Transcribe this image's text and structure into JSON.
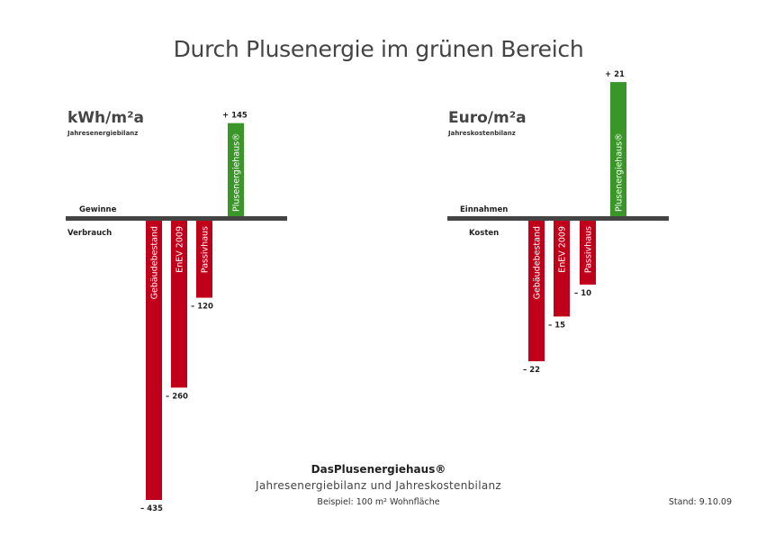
{
  "title": "Durch Plusenergie im grünen Bereich",
  "footer": {
    "title": "DasPlusenergiehaus®",
    "subtitle": "Jahresenergiebilanz und Jahreskostenbilanz",
    "example": "Beispiel:   100 m² Wohnfläche",
    "date": "Stand: 9.10.09"
  },
  "colors": {
    "negative": "#c0001b",
    "positive": "#3a9628",
    "axis": "#444444"
  },
  "chart_data": [
    {
      "type": "bar",
      "unit_label": "kWh/m²a",
      "subtitle": "Jahresenergiebilanz",
      "positive_label": "Gewinne",
      "negative_label": "Verbrauch",
      "categories": [
        "Gebäudebestand",
        "EnEV 2009",
        "Passivhaus",
        "Plusenergiehaus®"
      ],
      "values": [
        -435,
        -260,
        -120,
        145
      ],
      "value_labels": [
        "– 435",
        "– 260",
        "– 120",
        "+ 145"
      ]
    },
    {
      "type": "bar",
      "unit_label": "Euro/m²a",
      "subtitle": "Jahreskostenbilanz",
      "positive_label": "Einnahmen",
      "negative_label": "Kosten",
      "categories": [
        "Gebäudebestand",
        "EnEV 2009",
        "Passivhaus",
        "Plusenergiehaus®"
      ],
      "values": [
        -22,
        -15,
        -10,
        21
      ],
      "value_labels": [
        "– 22",
        "– 15",
        "– 10",
        "+ 21"
      ]
    }
  ]
}
